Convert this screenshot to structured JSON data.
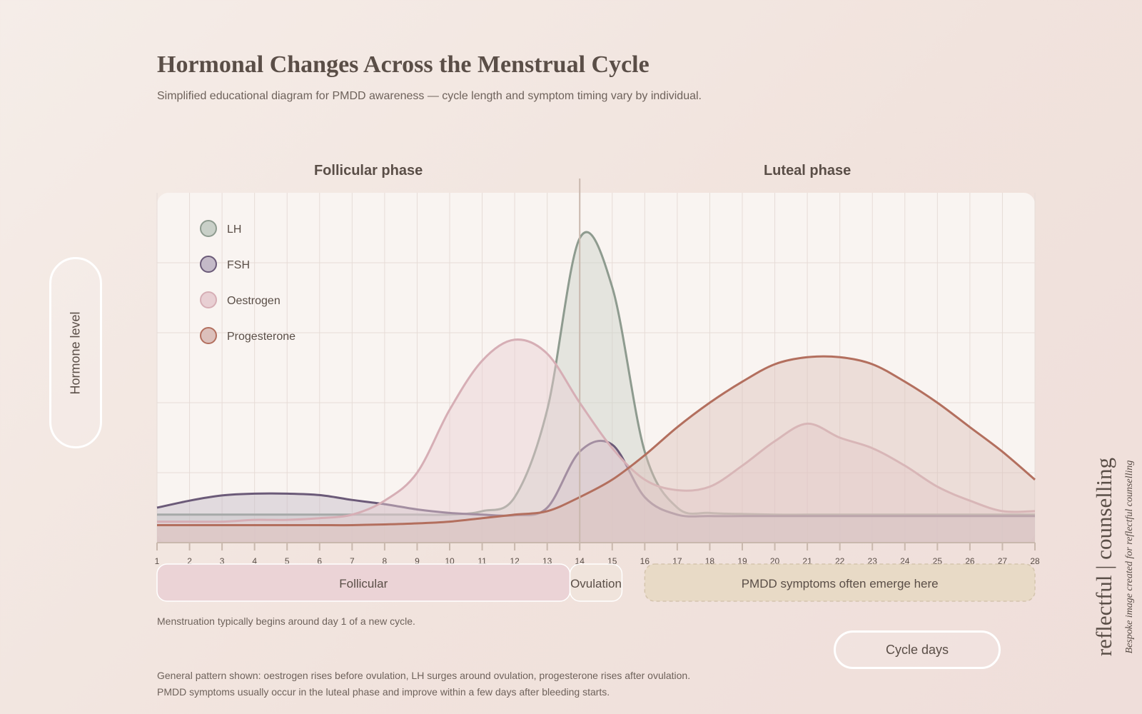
{
  "header": {
    "title": "Hormonal Changes Across the Menstrual Cycle",
    "subtitle": "Simplified educational diagram for PMDD awareness — cycle length and symptom timing vary by individual."
  },
  "chart_data": {
    "type": "area",
    "title": "Hormonal Changes Across the Menstrual Cycle",
    "xlabel": "Cycle days",
    "ylabel": "Hormone level",
    "x": [
      1,
      2,
      3,
      4,
      5,
      6,
      7,
      8,
      9,
      10,
      11,
      12,
      13,
      14,
      15,
      16,
      17,
      18,
      19,
      20,
      21,
      22,
      23,
      24,
      25,
      26,
      27,
      28
    ],
    "xlim": [
      1,
      28
    ],
    "ylim": [
      0,
      100
    ],
    "grid": true,
    "legend_position": "top-left",
    "phases": [
      {
        "label": "Follicular phase",
        "start": 1,
        "end": 14
      },
      {
        "label": "Luteal phase",
        "start": 14,
        "end": 28
      }
    ],
    "ovulation_day": 14,
    "bands": [
      {
        "label": "Follicular",
        "start": 1,
        "end": 13.7,
        "color": "#ebd3d6",
        "dashed": false
      },
      {
        "label": "Ovulation",
        "start": 13.7,
        "end": 15.3,
        "color": "#f0e4dc",
        "dashed": false
      },
      {
        "label": "PMDD symptoms often emerge here",
        "start": 16,
        "end": 28,
        "color": "#e8dac6",
        "dashed": true
      }
    ],
    "series": [
      {
        "name": "LH",
        "color": "#8e9b8f",
        "fill": "#c9d0c8",
        "values": [
          8,
          8,
          8,
          8,
          8,
          8,
          8,
          8,
          8,
          8,
          9,
          13,
          38,
          87,
          73,
          26,
          10,
          8.5,
          8.2,
          8,
          8,
          8,
          8,
          8,
          8,
          8,
          8,
          8
        ]
      },
      {
        "name": "FSH",
        "color": "#6b5a78",
        "fill": "#c4bac8",
        "values": [
          10,
          12,
          13.5,
          14,
          14,
          13.6,
          12.2,
          11,
          9.5,
          8.5,
          8,
          7.8,
          10,
          26,
          28,
          13,
          8,
          7.6,
          7.6,
          7.6,
          7.6,
          7.6,
          7.6,
          7.6,
          7.6,
          7.6,
          7.6,
          7.6
        ]
      },
      {
        "name": "Oestrogen",
        "color": "#d6aeb5",
        "fill": "#e8cfd3",
        "values": [
          6,
          6,
          6,
          6.5,
          6.5,
          7,
          8,
          12,
          20,
          38,
          52,
          58,
          54,
          40,
          27,
          18,
          15,
          16,
          22,
          29,
          34,
          30,
          27,
          22,
          16,
          12,
          9,
          9
        ]
      },
      {
        "name": "Progesterone",
        "color": "#b36f5e",
        "fill": "#dcc0bb",
        "values": [
          5,
          5,
          5,
          5,
          5,
          5,
          5,
          5.2,
          5.5,
          6,
          7,
          8,
          9,
          13,
          18,
          25,
          33,
          40,
          46,
          51,
          53,
          53,
          51,
          46,
          40,
          33,
          26,
          18
        ]
      }
    ]
  },
  "notes": {
    "menstruation": "Menstruation typically begins around day 1 of a new cycle.",
    "summary_line1": "General pattern shown: oestrogen rises before ovulation, LH surges around ovulation, progesterone rises after ovulation.",
    "summary_line2": "PMDD symptoms usually occur in the luteal phase and improve within a few days after bleeding starts."
  },
  "brand": {
    "name": "reflectful | counselling",
    "tagline": "Bespoke image created for reflectful counselling"
  }
}
